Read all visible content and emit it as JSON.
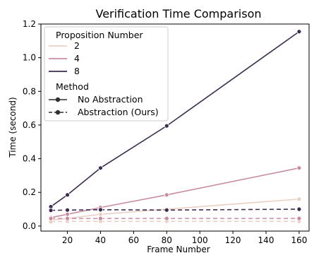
{
  "chart_data": {
    "type": "line",
    "title": "Verification Time Comparison",
    "xlabel": "Frame Number",
    "ylabel": "Time (second)",
    "xlim": [
      4,
      166
    ],
    "ylim": [
      -0.03,
      1.2
    ],
    "xticks": [
      20,
      40,
      60,
      80,
      100,
      120,
      140,
      160
    ],
    "yticks": [
      0.0,
      0.2,
      0.4,
      0.6,
      0.8,
      1.0,
      1.2
    ],
    "x": [
      10,
      20,
      40,
      80,
      160
    ],
    "grid": false,
    "legend_position": "top-left",
    "legend": {
      "hue_title": "Proposition Number",
      "style_title": "Method",
      "hue_entries": [
        {
          "label": "2",
          "color": "#eccfc4"
        },
        {
          "label": "4",
          "color": "#c98da1"
        },
        {
          "label": "8",
          "color": "#3b2b50"
        }
      ],
      "style_entries": [
        {
          "label": "No Abstraction",
          "dash": "solid"
        },
        {
          "label": "Abstraction (Ours)",
          "dash": "dashed"
        }
      ],
      "style_color": "#2f2f2f"
    },
    "series": [
      {
        "proposition": "2",
        "method": "No Abstraction",
        "color": "#eccfc4",
        "dash": "solid",
        "values": [
          0.035,
          0.045,
          0.07,
          0.1,
          0.16
        ]
      },
      {
        "proposition": "4",
        "method": "No Abstraction",
        "color": "#c98da1",
        "dash": "solid",
        "values": [
          0.05,
          0.07,
          0.11,
          0.185,
          0.345
        ]
      },
      {
        "proposition": "8",
        "method": "No Abstraction",
        "color": "#3b2b50",
        "dash": "solid",
        "values": [
          0.115,
          0.185,
          0.345,
          0.595,
          1.155
        ]
      },
      {
        "proposition": "2",
        "method": "Abstraction (Ours)",
        "color": "#eccfc4",
        "dash": "dashed",
        "values": [
          0.025,
          0.028,
          0.028,
          0.028,
          0.028
        ]
      },
      {
        "proposition": "4",
        "method": "Abstraction (Ours)",
        "color": "#c98da1",
        "dash": "dashed",
        "values": [
          0.045,
          0.045,
          0.045,
          0.045,
          0.045
        ]
      },
      {
        "proposition": "8",
        "method": "Abstraction (Ours)",
        "color": "#3b2b50",
        "dash": "dashed",
        "values": [
          0.093,
          0.095,
          0.097,
          0.095,
          0.1
        ]
      }
    ]
  }
}
